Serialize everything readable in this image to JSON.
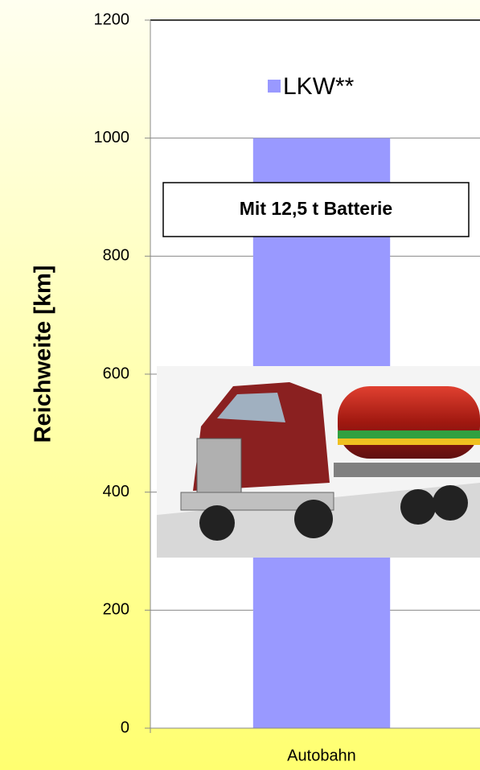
{
  "chart_data": {
    "type": "bar",
    "y_label": "Reichweite [km]",
    "categories": [
      "Autobahn"
    ],
    "series": [
      {
        "name": "LKW**",
        "color": "#9999ff",
        "values": [
          1000
        ]
      }
    ],
    "annotation": "Mit 12,5 t Batterie",
    "ylim": [
      0,
      1200
    ],
    "yticks": [
      0,
      200,
      400,
      600,
      800,
      1000,
      1200
    ],
    "grid": true
  }
}
